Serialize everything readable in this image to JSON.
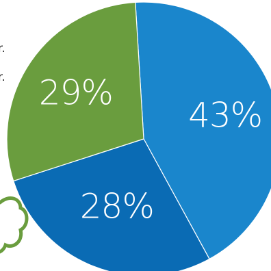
{
  "chart_data": {
    "type": "pie",
    "slices": [
      {
        "label": "43%",
        "value": 43,
        "color": "#1A86CC"
      },
      {
        "label": "28%",
        "value": 28,
        "color": "#0A6BB4"
      },
      {
        "label": "29%",
        "value": 29,
        "color": "#6A9D3E"
      }
    ]
  },
  "side_text": {
    "line1": "r.",
    "line2": "r."
  },
  "colors": {
    "blob_outline": "#6A9D3E",
    "separator": "#ffffff"
  }
}
